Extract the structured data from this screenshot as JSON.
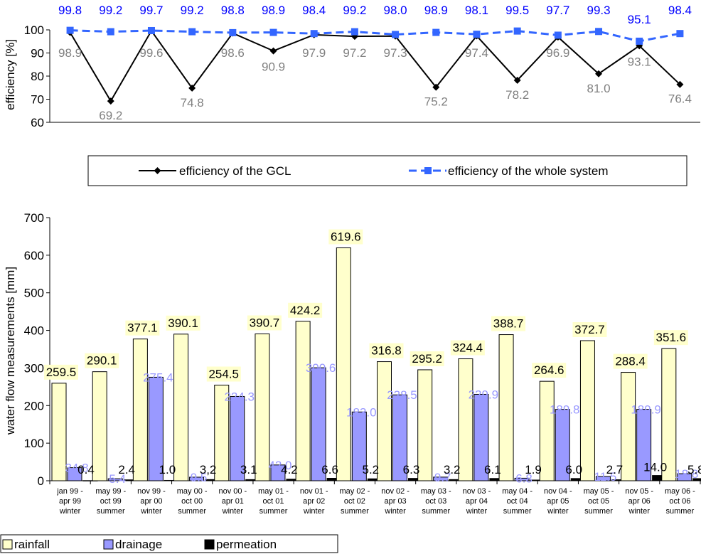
{
  "chart_data": [
    {
      "type": "line",
      "ylabel": "efficiency [%]",
      "ylim": [
        60,
        100
      ],
      "yticks": [
        60,
        70,
        80,
        90,
        100
      ],
      "grid": false,
      "legend_position": "bottom",
      "series": [
        {
          "name": "efficiency of the GCL",
          "color": "#000000",
          "label_color": "#808080",
          "marker": "diamond",
          "values": [
            98.9,
            69.2,
            99.6,
            74.8,
            98.6,
            90.9,
            97.9,
            97.2,
            97.3,
            75.2,
            97.4,
            78.2,
            96.9,
            81.0,
            93.1,
            76.4
          ],
          "labels": [
            "98.9",
            "69.2",
            "99.6",
            "74.8",
            "98.6",
            "90.9",
            "97.9",
            "97.2",
            "97.3",
            "75.2",
            "97.4",
            "78.2",
            "96.9",
            "81.0",
            "93.1",
            "76.4"
          ]
        },
        {
          "name": "efficiency of the whole system",
          "color": "#3366ff",
          "label_color": "#0000ff",
          "marker": "square",
          "dashed": true,
          "values": [
            99.8,
            99.2,
            99.7,
            99.2,
            98.8,
            98.9,
            98.4,
            99.2,
            98.0,
            98.9,
            98.1,
            99.5,
            97.7,
            99.3,
            95.1,
            98.4
          ],
          "labels": [
            "99.8",
            "99.2",
            "99.7",
            "99.2",
            "98.8",
            "98.9",
            "98.4",
            "99.2",
            "98.0",
            "98.9",
            "98.1",
            "99.5",
            "97.7",
            "99.3",
            "95.1",
            "98.4"
          ]
        }
      ]
    },
    {
      "type": "bar",
      "ylabel": "water flow measurements [mm]",
      "ylim": [
        0,
        700
      ],
      "yticks": [
        0,
        100,
        200,
        300,
        400,
        500,
        600,
        700
      ],
      "grid": false,
      "legend_position": "bottom-left",
      "categories": [
        [
          "jan 99 -",
          "apr 99",
          "winter"
        ],
        [
          "may 99 -",
          "oct 99",
          "summer"
        ],
        [
          "nov 99 -",
          "apr 00",
          "winter"
        ],
        [
          "may 00 -",
          "oct 00",
          "summer"
        ],
        [
          "nov 00 -",
          "apr 01",
          "winter"
        ],
        [
          "may 01 -",
          "oct 01",
          "summer"
        ],
        [
          "nov 01 -",
          "apr 02",
          "winter"
        ],
        [
          "may 02 -",
          "oct 02",
          "summer"
        ],
        [
          "nov 02 -",
          "apr 03",
          "winter"
        ],
        [
          "may 03 -",
          "oct 03",
          "summer"
        ],
        [
          "nov 03 -",
          "apr 04",
          "winter"
        ],
        [
          "may 04 -",
          "oct 04",
          "summer"
        ],
        [
          "nov 04 -",
          "apr 05",
          "winter"
        ],
        [
          "may 05 -",
          "oct 05",
          "summer"
        ],
        [
          "nov 05 -",
          "apr 06",
          "winter"
        ],
        [
          "may 06 -",
          "oct 06",
          "summer"
        ]
      ],
      "series": [
        {
          "name": "rainfall",
          "color": "#ffffcc",
          "label_color": "#000000",
          "label_bg": "#ffffcc",
          "values": [
            259.5,
            290.1,
            377.1,
            390.1,
            254.5,
            390.7,
            424.2,
            619.6,
            316.8,
            295.2,
            324.4,
            388.7,
            264.6,
            372.7,
            288.4,
            351.6
          ],
          "labels": [
            "259.5",
            "290.1",
            "377.1",
            "390.1",
            "254.5",
            "390.7",
            "424.2",
            "619.6",
            "316.8",
            "295.2",
            "324.4",
            "388.7",
            "264.6",
            "372.7",
            "288.4",
            "351.6"
          ]
        },
        {
          "name": "drainage",
          "color": "#9999ff",
          "label_color": "#9999ff",
          "values": [
            34.8,
            5.4,
            275.4,
            9.5,
            224.3,
            42.0,
            300.6,
            183.0,
            228.5,
            9.7,
            229.9,
            6.8,
            189.8,
            11.5,
            189.9,
            18.8
          ],
          "labels": [
            "34.8",
            "5.4",
            "275.4",
            "9.5",
            "224.3",
            "42.0",
            "300.6",
            "183.0",
            "228.5",
            "9.7",
            "229.9",
            "6.8",
            "189.8",
            "11.5",
            "189.9",
            "18.8"
          ]
        },
        {
          "name": "permeation",
          "color": "#000000",
          "label_color": "#000000",
          "values": [
            0.4,
            2.4,
            1.0,
            3.2,
            3.1,
            4.2,
            6.6,
            5.2,
            6.3,
            3.2,
            6.1,
            1.9,
            6.0,
            2.7,
            14.0,
            5.8
          ],
          "labels": [
            "0.4",
            "2.4",
            "1.0",
            "3,2",
            "3.1",
            "4.2",
            "6.6",
            "5.2",
            "6.3",
            "3.2",
            "6.1",
            "1.9",
            "6.0",
            "2.7",
            "14.0",
            "5.8"
          ]
        }
      ]
    }
  ]
}
